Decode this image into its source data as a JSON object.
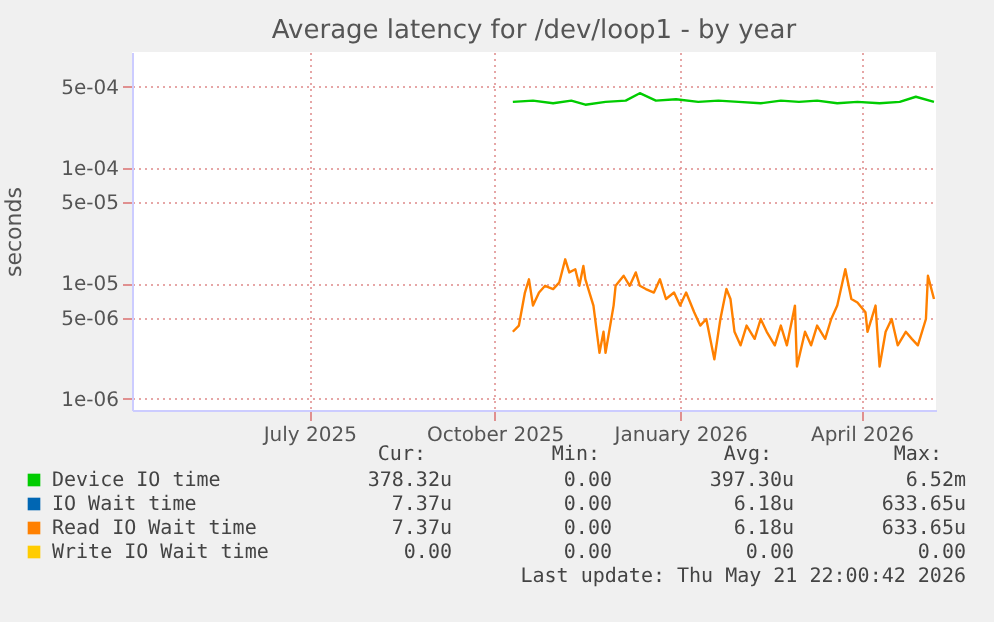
{
  "chart_data": {
    "type": "line",
    "title": "Average latency for /dev/loop1 - by year",
    "ylabel": "seconds",
    "log": true,
    "grid": true,
    "legend": "bottom",
    "xlim": [
      "2025-04-04",
      "2026-05-08"
    ],
    "xticks": [
      {
        "value": "2025-07-01",
        "label": "July 2025"
      },
      {
        "value": "2025-10-01",
        "label": "October 2025"
      },
      {
        "value": "2026-01-01",
        "label": "January 2026"
      },
      {
        "value": "2026-04-01",
        "label": "April 2026"
      }
    ],
    "ylim": [
      8e-07,
      0.001
    ],
    "yticks": [
      {
        "value": 1e-06,
        "label": "1e-06"
      },
      {
        "value": 5e-06,
        "label": "5e-06"
      },
      {
        "value": 1e-05,
        "label": "1e-05"
      },
      {
        "value": 5e-05,
        "label": "5e-05"
      },
      {
        "value": 0.0001,
        "label": "1e-04"
      },
      {
        "value": 0.0005,
        "label": "5e-04"
      }
    ],
    "x": [
      "2025-10-10",
      "2025-10-13",
      "2025-10-16",
      "2025-10-18",
      "2025-10-20",
      "2025-10-23",
      "2025-10-26",
      "2025-10-30",
      "2025-11-02",
      "2025-11-05",
      "2025-11-07",
      "2025-11-10",
      "2025-11-12",
      "2025-11-14",
      "2025-11-15",
      "2025-11-19",
      "2025-11-22",
      "2025-11-24",
      "2025-11-25",
      "2025-11-29",
      "2025-11-30",
      "2025-12-04",
      "2025-12-07",
      "2025-12-10",
      "2025-12-12",
      "2025-12-15",
      "2025-12-19",
      "2025-12-22",
      "2025-12-25",
      "2025-12-29",
      "2026-01-01",
      "2026-01-04",
      "2026-01-08",
      "2026-01-11",
      "2026-01-14",
      "2026-01-18",
      "2026-01-21",
      "2026-01-24",
      "2026-01-26",
      "2026-01-28",
      "2026-01-31",
      "2026-02-03",
      "2026-02-07",
      "2026-02-10",
      "2026-02-13",
      "2026-02-17",
      "2026-02-20",
      "2026-02-23",
      "2026-02-27",
      "2026-02-28",
      "2026-03-04",
      "2026-03-07",
      "2026-03-10",
      "2026-03-14",
      "2026-03-17",
      "2026-03-20",
      "2026-03-24",
      "2026-03-25",
      "2026-03-27",
      "2026-03-30",
      "2026-04-03",
      "2026-04-04",
      "2026-04-08",
      "2026-04-10",
      "2026-04-13",
      "2026-04-16",
      "2026-04-19",
      "2026-04-23",
      "2026-04-26",
      "2026-04-29",
      "2026-05-03",
      "2026-05-04",
      "2026-05-07"
    ],
    "series": [
      {
        "name": "Device IO time",
        "color": "#00cc00",
        "x": [
          "2025-10-10",
          "2025-10-20",
          "2025-10-30",
          "2025-11-08",
          "2025-11-15",
          "2025-11-25",
          "2025-12-05",
          "2025-12-12",
          "2025-12-20",
          "2025-12-30",
          "2026-01-10",
          "2026-01-20",
          "2026-01-30",
          "2026-02-10",
          "2026-02-20",
          "2026-03-01",
          "2026-03-10",
          "2026-03-20",
          "2026-03-30",
          "2026-04-10",
          "2026-04-20",
          "2026-04-28",
          "2026-05-07"
        ],
        "values": [
          0.00037,
          0.00038,
          0.00036,
          0.00038,
          0.00035,
          0.00037,
          0.00038,
          0.00044,
          0.00038,
          0.00039,
          0.00037,
          0.00038,
          0.00037,
          0.00036,
          0.00038,
          0.00037,
          0.00038,
          0.00036,
          0.00037,
          0.00036,
          0.00037,
          0.00041,
          0.00037
        ]
      },
      {
        "name": "IO Wait time",
        "color": "#0066b3",
        "values": [
          null,
          null,
          null,
          null,
          null,
          null,
          null,
          null,
          null,
          null,
          null,
          null,
          null,
          null,
          null,
          null,
          null,
          null,
          null,
          null,
          null,
          null,
          null,
          null,
          null,
          null,
          null,
          null,
          null,
          null,
          null,
          null,
          null,
          null,
          null,
          null,
          null,
          null,
          null,
          null,
          null,
          null,
          null,
          null,
          null,
          null,
          null,
          null,
          null,
          null,
          null,
          null,
          null,
          null,
          null,
          null,
          null,
          null,
          null,
          null,
          null,
          null,
          null,
          null,
          null,
          null,
          null,
          null,
          null,
          null,
          null,
          null,
          null
        ]
      },
      {
        "name": "Read IO Wait time",
        "color": "#ff8000",
        "values": [
          3.8e-06,
          4.3e-06,
          8.3e-06,
          1.08e-05,
          6.4e-06,
          8.3e-06,
          9.5e-06,
          8.9e-06,
          1.01e-05,
          1.61e-05,
          1.24e-05,
          1.32e-05,
          9.5e-06,
          1.41e-05,
          1.08e-05,
          6.4e-06,
          2.5e-06,
          3.8e-06,
          2.5e-06,
          6.4e-06,
          9.5e-06,
          1.16e-05,
          9.5e-06,
          1.24e-05,
          9.5e-06,
          8.9e-06,
          8.3e-06,
          1.08e-05,
          7.3e-06,
          8.3e-06,
          6.4e-06,
          8.3e-06,
          5.6e-06,
          4.3e-06,
          4.9e-06,
          2.2e-06,
          4.9e-06,
          8.9e-06,
          7.3e-06,
          3.8e-06,
          2.9e-06,
          4.3e-06,
          3.3e-06,
          4.9e-06,
          3.8e-06,
          2.9e-06,
          4.3e-06,
          2.9e-06,
          6.4e-06,
          1.9e-06,
          3.8e-06,
          2.9e-06,
          4.3e-06,
          3.3e-06,
          4.9e-06,
          6.4e-06,
          1.32e-05,
          1.08e-05,
          7.3e-06,
          6.8e-06,
          5.6e-06,
          3.8e-06,
          6.4e-06,
          1.9e-06,
          3.8e-06,
          4.9e-06,
          2.9e-06,
          3.8e-06,
          3.3e-06,
          2.9e-06,
          4.9e-06,
          1.16e-05,
          7.3e-06
        ]
      },
      {
        "name": "Write IO Wait time",
        "color": "#ffcc00",
        "values": [
          null,
          null,
          null,
          null,
          null,
          null,
          null,
          null,
          null,
          null,
          null,
          null,
          null,
          null,
          null,
          null,
          null,
          null,
          null,
          null,
          null,
          null,
          null,
          null,
          null,
          null,
          null,
          null,
          null,
          null,
          null,
          null,
          null,
          null,
          null,
          null,
          null,
          null,
          null,
          null,
          null,
          null,
          null,
          null,
          null,
          null,
          null,
          null,
          null,
          null,
          null,
          null,
          null,
          null,
          null,
          null,
          null,
          null,
          null,
          null,
          null,
          null,
          null,
          null,
          null,
          null,
          null,
          null,
          null,
          null,
          null,
          null,
          null
        ]
      }
    ],
    "annotations": [
      "Cur:",
      "Min:",
      "Avg:",
      "Max:",
      "378.32u",
      "0.00",
      "397.30u",
      "6.52m",
      "7.37u",
      "0.00",
      "6.18u",
      "633.65u",
      "7.37u",
      "0.00",
      "6.18u",
      "633.65u",
      "0.00",
      "0.00",
      "0.00",
      "0.00",
      "Last update: Thu May 21 22:00:42 2026"
    ]
  }
}
